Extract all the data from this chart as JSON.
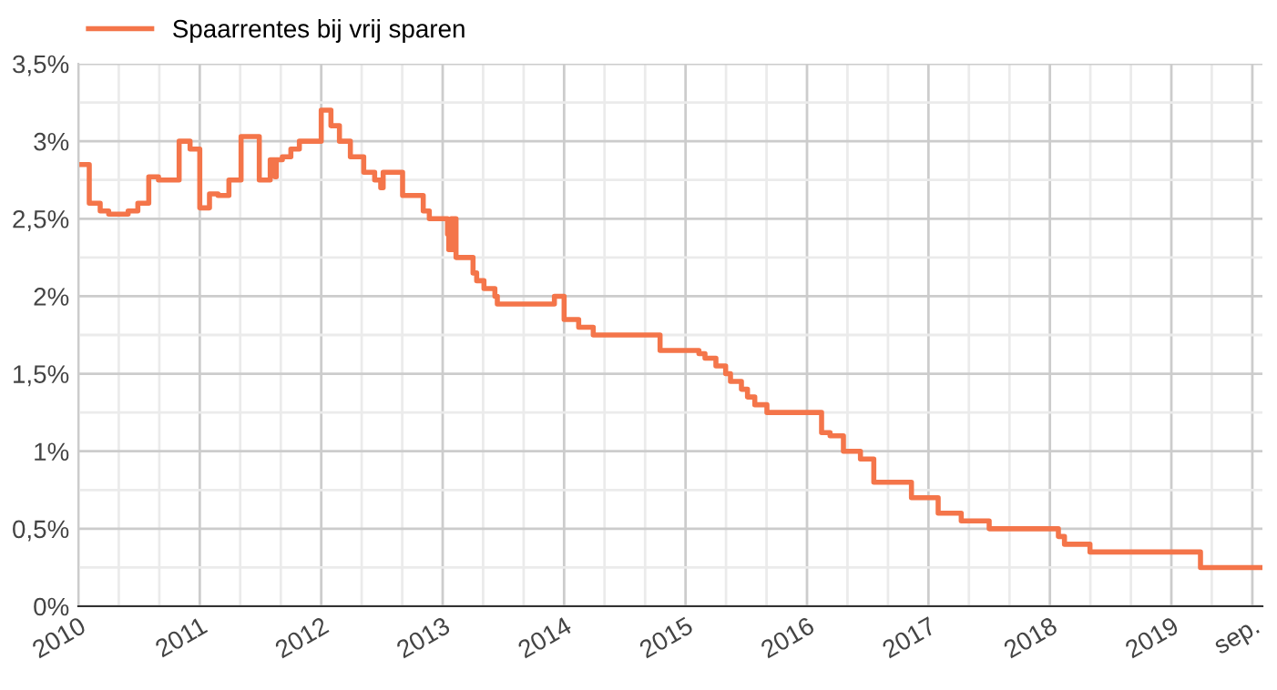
{
  "chart_data": {
    "type": "step",
    "legend": "top left",
    "grid": true,
    "line_style": "solid",
    "marker": "none",
    "xlim": [
      2010,
      2019.75
    ],
    "ylim": [
      0,
      3.5
    ],
    "xticks": [
      {
        "value": 2010,
        "label": "2010"
      },
      {
        "value": 2010.333,
        "label": null
      },
      {
        "value": 2010.667,
        "label": null
      },
      {
        "value": 2011,
        "label": "2011"
      },
      {
        "value": 2011.333,
        "label": null
      },
      {
        "value": 2011.667,
        "label": null
      },
      {
        "value": 2012,
        "label": "2012"
      },
      {
        "value": 2012.333,
        "label": null
      },
      {
        "value": 2012.667,
        "label": null
      },
      {
        "value": 2013,
        "label": "2013"
      },
      {
        "value": 2013.333,
        "label": null
      },
      {
        "value": 2013.667,
        "label": null
      },
      {
        "value": 2014,
        "label": "2014"
      },
      {
        "value": 2014.333,
        "label": null
      },
      {
        "value": 2014.667,
        "label": null
      },
      {
        "value": 2015,
        "label": "2015"
      },
      {
        "value": 2015.333,
        "label": null
      },
      {
        "value": 2015.667,
        "label": null
      },
      {
        "value": 2016,
        "label": "2016"
      },
      {
        "value": 2016.333,
        "label": null
      },
      {
        "value": 2016.667,
        "label": null
      },
      {
        "value": 2017,
        "label": "2017"
      },
      {
        "value": 2017.333,
        "label": null
      },
      {
        "value": 2017.667,
        "label": null
      },
      {
        "value": 2018,
        "label": "2018"
      },
      {
        "value": 2018.333,
        "label": null
      },
      {
        "value": 2018.667,
        "label": null
      },
      {
        "value": 2019,
        "label": "2019"
      },
      {
        "value": 2019.333,
        "label": null
      },
      {
        "value": 2019.667,
        "label": "sep."
      }
    ],
    "yticks": [
      {
        "value": 0,
        "label": "0%"
      },
      {
        "value": 0.25,
        "label": null
      },
      {
        "value": 0.5,
        "label": "0,5%"
      },
      {
        "value": 0.75,
        "label": null
      },
      {
        "value": 1,
        "label": "1%"
      },
      {
        "value": 1.25,
        "label": null
      },
      {
        "value": 1.5,
        "label": "1,5%"
      },
      {
        "value": 1.75,
        "label": null
      },
      {
        "value": 2,
        "label": "2%"
      },
      {
        "value": 2.25,
        "label": null
      },
      {
        "value": 2.5,
        "label": "2,5%"
      },
      {
        "value": 2.75,
        "label": null
      },
      {
        "value": 3,
        "label": "3%"
      },
      {
        "value": 3.25,
        "label": null
      },
      {
        "value": 3.5,
        "label": "3,5%"
      }
    ],
    "series": [
      {
        "name": "Spaarrentes bij vrij sparen",
        "color": "#f4754a",
        "x": [
          2010,
          2010.09,
          2010.18,
          2010.25,
          2010.41,
          2010.49,
          2010.58,
          2010.66,
          2010.83,
          2010.92,
          2011.0,
          2011.08,
          2011.15,
          2011.24,
          2011.34,
          2011.49,
          2011.58,
          2011.62,
          2011.63,
          2011.68,
          2011.75,
          2011.82,
          2012.0,
          2012.08,
          2012.15,
          2012.24,
          2012.35,
          2012.44,
          2012.49,
          2012.51,
          2012.67,
          2012.84,
          2012.89,
          2013.04,
          2013.05,
          2013.07,
          2013.08,
          2013.09,
          2013.11,
          2013.25,
          2013.28,
          2013.34,
          2013.43,
          2013.45,
          2013.92,
          2014.0,
          2014.12,
          2014.24,
          2014.79,
          2015.11,
          2015.16,
          2015.25,
          2015.33,
          2015.37,
          2015.46,
          2015.51,
          2015.57,
          2015.67,
          2016.12,
          2016.19,
          2016.3,
          2016.44,
          2016.55,
          2016.86,
          2017.08,
          2017.27,
          2017.5,
          2018.07,
          2018.12,
          2018.33,
          2019.24,
          2019.75
        ],
        "values": [
          2.85,
          2.6,
          2.55,
          2.53,
          2.55,
          2.6,
          2.77,
          2.75,
          3.0,
          2.95,
          2.57,
          2.66,
          2.65,
          2.75,
          3.03,
          2.75,
          2.88,
          2.77,
          2.88,
          2.9,
          2.95,
          3.0,
          3.2,
          3.1,
          3.0,
          2.9,
          2.8,
          2.75,
          2.7,
          2.8,
          2.65,
          2.55,
          2.5,
          2.4,
          2.3,
          2.5,
          2.3,
          2.5,
          2.25,
          2.15,
          2.1,
          2.05,
          2.0,
          1.95,
          2.0,
          1.85,
          1.8,
          1.75,
          1.65,
          1.63,
          1.6,
          1.55,
          1.5,
          1.45,
          1.4,
          1.35,
          1.3,
          1.25,
          1.12,
          1.1,
          1.0,
          0.95,
          0.8,
          0.7,
          0.6,
          0.55,
          0.5,
          0.45,
          0.4,
          0.35,
          0.25,
          0.25
        ]
      }
    ]
  }
}
